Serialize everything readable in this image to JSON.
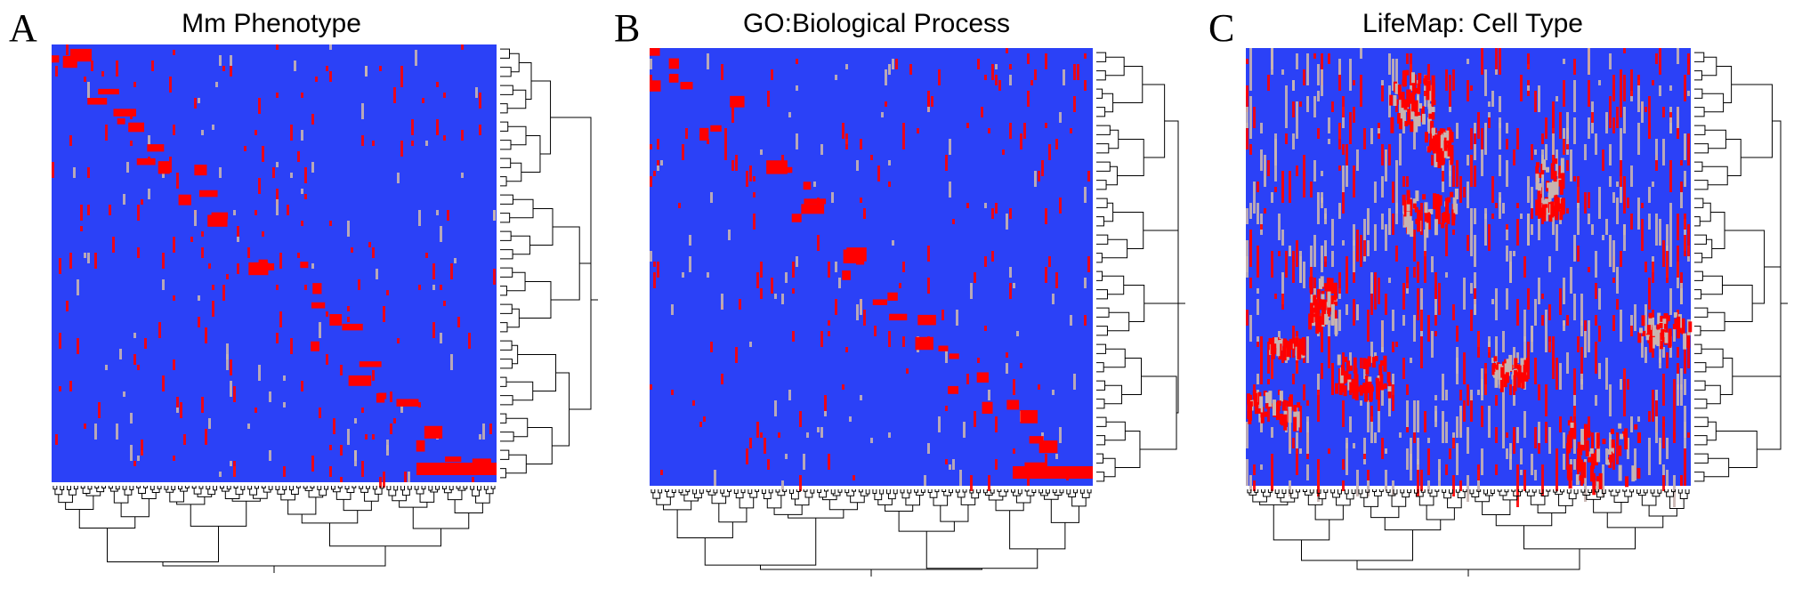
{
  "figure": {
    "panels": [
      {
        "letter": "A",
        "title": "Mm Phenotype"
      },
      {
        "letter": "B",
        "title": "GO:Biological Process"
      },
      {
        "letter": "C",
        "title": "LifeMap: Cell Type"
      }
    ]
  },
  "chart_data": [
    {
      "type": "heatmap",
      "title": "Mm Phenotype",
      "row_dendrogram": "right",
      "column_dendrogram": "bottom",
      "colors": {
        "low": "#2b41f7",
        "mid": "#c8b4b0",
        "high": "#ff0000"
      },
      "pattern": "diagonal-blocks",
      "density": 0.03
    },
    {
      "type": "heatmap",
      "title": "GO:Biological Process",
      "row_dendrogram": "right",
      "column_dendrogram": "bottom",
      "colors": {
        "low": "#2b41f7",
        "mid": "#c8b4b0",
        "high": "#ff0000"
      },
      "pattern": "diagonal-blocks",
      "density": 0.03
    },
    {
      "type": "heatmap",
      "title": "LifeMap: Cell Type",
      "row_dendrogram": "right",
      "column_dendrogram": "bottom",
      "colors": {
        "low": "#2b41f7",
        "mid": "#c8b4b0",
        "high": "#ff0000"
      },
      "pattern": "dense-clusters",
      "density": 0.22
    }
  ]
}
